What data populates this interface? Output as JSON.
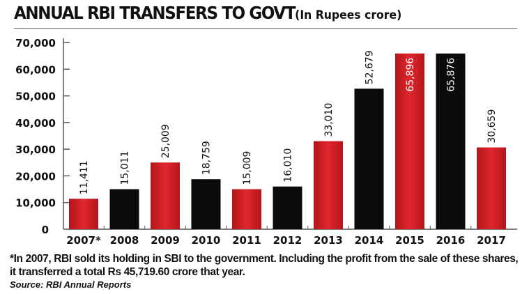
{
  "title": "ANNUAL RBI TRANSFERS TO GOVT",
  "subtitle": "(In Rupees crore)",
  "footnote": "*In 2007, RBI sold its holding in SBI to the government. Including the profit from the sale of these shares, it transferred a total Rs 45,719.60 crore that year.",
  "source": "Source: RBI Annual Reports",
  "chart_data": {
    "type": "bar",
    "title": "ANNUAL RBI TRANSFERS TO GOVT",
    "ylabel": "",
    "xlabel": "",
    "ylim": [
      0,
      70000
    ],
    "yticks": [
      "0",
      "10,000",
      "20,000",
      "30,000",
      "40,000",
      "50,000",
      "60,000",
      "70,000"
    ],
    "categories": [
      "2007*",
      "2008",
      "2009",
      "2010",
      "2011",
      "2012",
      "2013",
      "2014",
      "2015",
      "2016",
      "2017"
    ],
    "values": [
      11411,
      15011,
      25009,
      18759,
      15009,
      16010,
      33010,
      52679,
      65896,
      65876,
      30659
    ],
    "labels": [
      "11,411",
      "15,011",
      "25,009",
      "18,759",
      "15,009",
      "16,010",
      "33,010",
      "52,679",
      "65,896",
      "65,876",
      "30,659"
    ],
    "bar_colors": [
      "#d01f26",
      "#0b0b0b",
      "#d01f26",
      "#0b0b0b",
      "#d01f26",
      "#0b0b0b",
      "#d01f26",
      "#0b0b0b",
      "#d01f26",
      "#0b0b0b",
      "#d01f26"
    ],
    "grid": false
  }
}
